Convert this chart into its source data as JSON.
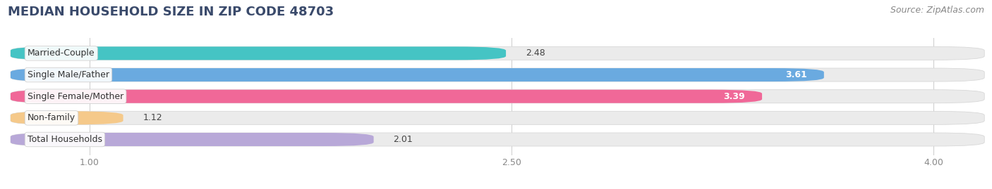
{
  "title": "MEDIAN HOUSEHOLD SIZE IN ZIP CODE 48703",
  "source": "Source: ZipAtlas.com",
  "categories": [
    "Married-Couple",
    "Single Male/Father",
    "Single Female/Mother",
    "Non-family",
    "Total Households"
  ],
  "values": [
    2.48,
    3.61,
    3.39,
    1.12,
    2.01
  ],
  "bar_colors": [
    "#45c4c4",
    "#6aaae0",
    "#f06898",
    "#f5c98a",
    "#b8a8d8"
  ],
  "row_bg_color": "#ebebeb",
  "bg_color": "#ffffff",
  "xlim_left": 0.0,
  "xlim_right": 4.35,
  "xmin": 0.72,
  "xmax": 4.18,
  "xticks": [
    1.0,
    2.5,
    4.0
  ],
  "bar_height": 0.62,
  "title_fontsize": 13,
  "source_fontsize": 9,
  "label_fontsize": 9,
  "value_fontsize": 9,
  "title_color": "#3a4a6b",
  "source_color": "#888888",
  "tick_color": "#888888"
}
